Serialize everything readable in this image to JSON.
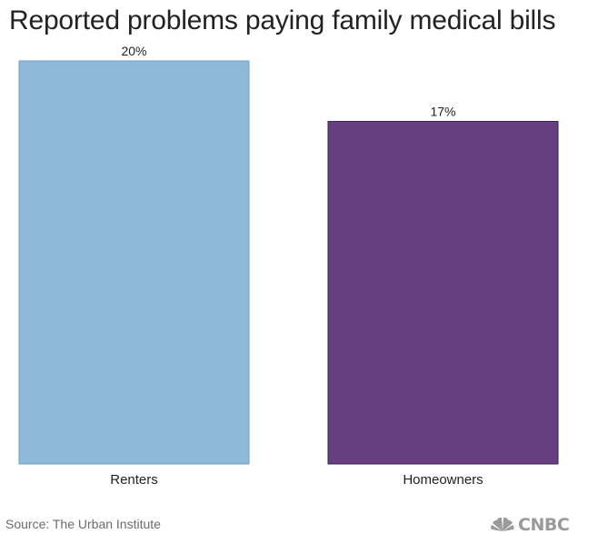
{
  "title": "Reported problems paying family medical bills",
  "source": "Source: The Urban Institute",
  "logo": {
    "text": "CNBC",
    "icon": "nbc-peacock-icon"
  },
  "colors": {
    "renters": "#8fb9d9",
    "homeowners": "#663f80",
    "text": "#222222"
  },
  "chart_data": {
    "type": "bar",
    "categories": [
      "Renters",
      "Homeowners"
    ],
    "values": [
      20,
      17
    ],
    "value_labels": [
      "20%",
      "17%"
    ],
    "unit": "%",
    "ylim": [
      0,
      20
    ],
    "grid": false,
    "legend": "none",
    "xlabel": "",
    "ylabel": ""
  }
}
